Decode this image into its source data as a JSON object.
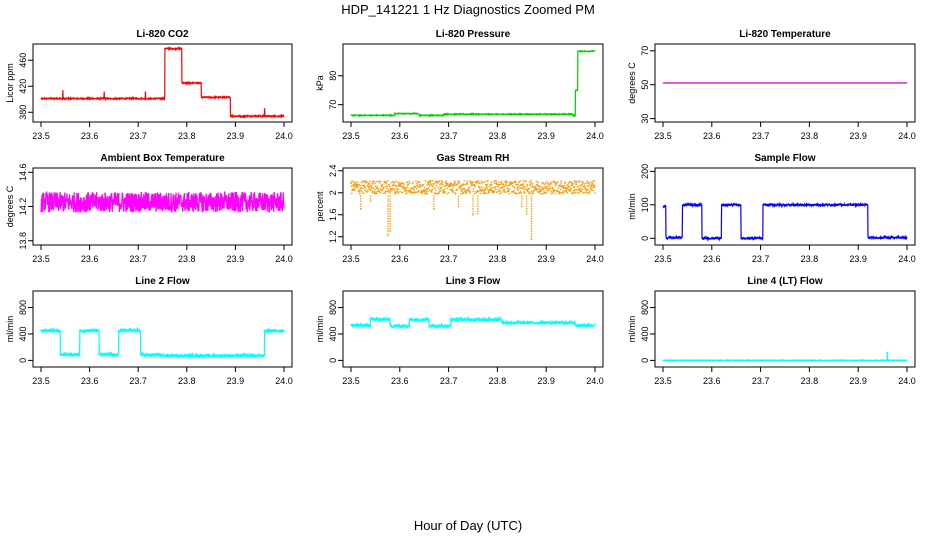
{
  "page": {
    "title": "HDP_141221  1 Hz Diagnostics Zoomed PM",
    "xlabel": "Hour of Day (UTC)"
  },
  "chart_data": [
    {
      "type": "line",
      "title": "Li-820 CO2",
      "ylabel": "Licor ppm",
      "color": "#ff0000",
      "xlim": [
        23.5,
        24.0
      ],
      "ylim": [
        365,
        485
      ],
      "yticks": [
        380,
        420,
        460
      ],
      "xticks": [
        23.5,
        23.6,
        23.7,
        23.8,
        23.9,
        24.0
      ],
      "segments": [
        [
          23.5,
          23.755,
          401
        ],
        [
          23.755,
          23.79,
          478
        ],
        [
          23.79,
          23.83,
          425
        ],
        [
          23.83,
          23.89,
          403
        ],
        [
          23.89,
          24.0,
          374
        ]
      ],
      "spikes": [
        [
          23.545,
          414
        ],
        [
          23.63,
          412
        ],
        [
          23.715,
          412
        ],
        [
          23.96,
          386
        ]
      ],
      "noise": 1
    },
    {
      "type": "line",
      "title": "Li-820 Pressure",
      "ylabel": "kPa",
      "color": "#00cc00",
      "xlim": [
        23.5,
        24.0
      ],
      "ylim": [
        64,
        91
      ],
      "yticks": [
        70,
        80
      ],
      "xticks": [
        23.5,
        23.6,
        23.7,
        23.8,
        23.9,
        24.0
      ],
      "segments": [
        [
          23.5,
          23.59,
          66.3
        ],
        [
          23.59,
          23.64,
          66.9
        ],
        [
          23.64,
          23.69,
          66.3
        ],
        [
          23.69,
          23.955,
          66.7
        ],
        [
          23.955,
          23.96,
          66.3
        ],
        [
          23.96,
          23.965,
          75
        ],
        [
          23.965,
          24.0,
          88.5
        ]
      ],
      "spikes": [],
      "noise": 0.15
    },
    {
      "type": "line",
      "title": "Li-820 Temperature",
      "ylabel": "degrees C",
      "color": "#cc00cc",
      "xlim": [
        23.5,
        24.0
      ],
      "ylim": [
        28,
        74
      ],
      "yticks": [
        30,
        50,
        70
      ],
      "xticks": [
        23.5,
        23.6,
        23.7,
        23.8,
        23.9,
        24.0
      ],
      "segments": [
        [
          23.5,
          24.0,
          51
        ]
      ],
      "spikes": [],
      "noise": 0
    },
    {
      "type": "line",
      "title": "Ambient Box Temperature",
      "ylabel": "degrees C",
      "color": "#ff00ff",
      "xlim": [
        23.5,
        24.0
      ],
      "ylim": [
        13.75,
        14.65
      ],
      "yticks": [
        13.8,
        14.2,
        14.6
      ],
      "xticks": [
        23.5,
        23.6,
        23.7,
        23.8,
        23.9,
        24.0
      ],
      "segments": [
        [
          23.5,
          24.0,
          14.25
        ]
      ],
      "spikes": [],
      "noise": 0.12
    },
    {
      "type": "scatter",
      "title": "Gas Stream RH",
      "ylabel": "percent",
      "color": "#ff9900",
      "xlim": [
        23.5,
        24.0
      ],
      "ylim": [
        1.05,
        2.45
      ],
      "yticks": [
        1.2,
        1.6,
        2.0,
        2.4
      ],
      "xticks": [
        23.5,
        23.6,
        23.7,
        23.8,
        23.9,
        24.0
      ],
      "segments": [
        [
          23.5,
          24.0,
          2.1
        ]
      ],
      "spikes": [
        [
          23.576,
          1.22
        ],
        [
          23.58,
          1.3
        ],
        [
          23.67,
          1.7
        ],
        [
          23.72,
          1.75
        ],
        [
          23.75,
          1.6
        ],
        [
          23.76,
          1.62
        ],
        [
          23.85,
          1.75
        ],
        [
          23.86,
          1.62
        ],
        [
          23.87,
          1.15
        ],
        [
          23.52,
          1.7
        ],
        [
          23.54,
          1.85
        ]
      ],
      "noise": 0.12
    },
    {
      "type": "line",
      "title": "Sample Flow",
      "ylabel": "ml/min",
      "color": "#0000ff",
      "xlim": [
        23.5,
        24.0
      ],
      "ylim": [
        -20,
        210
      ],
      "yticks": [
        0,
        100,
        200
      ],
      "xticks": [
        23.5,
        23.6,
        23.7,
        23.8,
        23.9,
        24.0
      ],
      "segments": [
        [
          23.5,
          23.506,
          95
        ],
        [
          23.506,
          23.54,
          2
        ],
        [
          23.54,
          23.58,
          100
        ],
        [
          23.58,
          23.62,
          0
        ],
        [
          23.62,
          23.66,
          100
        ],
        [
          23.66,
          23.705,
          0
        ],
        [
          23.705,
          23.92,
          100
        ],
        [
          23.92,
          24.0,
          2
        ]
      ],
      "spikes": [],
      "noise": 3
    },
    {
      "type": "line",
      "title": "Line 2 Flow",
      "ylabel": "ml/min",
      "color": "#00ffff",
      "xlim": [
        23.5,
        24.0
      ],
      "ylim": [
        -100,
        1050
      ],
      "yticks": [
        0,
        400,
        800
      ],
      "xticks": [
        23.5,
        23.6,
        23.7,
        23.8,
        23.9,
        24.0
      ],
      "segments": [
        [
          23.5,
          23.54,
          450
        ],
        [
          23.54,
          23.58,
          90
        ],
        [
          23.58,
          23.62,
          450
        ],
        [
          23.62,
          23.66,
          90
        ],
        [
          23.66,
          23.705,
          450
        ],
        [
          23.705,
          23.75,
          80
        ],
        [
          23.75,
          23.96,
          70
        ],
        [
          23.96,
          24.0,
          450
        ]
      ],
      "spikes": [],
      "noise": 25
    },
    {
      "type": "line",
      "title": "Line 3 Flow",
      "ylabel": "ml/min",
      "color": "#00ffff",
      "xlim": [
        23.5,
        24.0
      ],
      "ylim": [
        -100,
        1050
      ],
      "yticks": [
        0,
        400,
        800
      ],
      "xticks": [
        23.5,
        23.6,
        23.7,
        23.8,
        23.9,
        24.0
      ],
      "segments": [
        [
          23.5,
          23.54,
          530
        ],
        [
          23.54,
          23.58,
          620
        ],
        [
          23.58,
          23.62,
          520
        ],
        [
          23.62,
          23.66,
          620
        ],
        [
          23.66,
          23.705,
          520
        ],
        [
          23.705,
          23.81,
          620
        ],
        [
          23.81,
          23.96,
          570
        ],
        [
          23.96,
          24.0,
          530
        ]
      ],
      "spikes": [],
      "noise": 25
    },
    {
      "type": "line",
      "title": "Line 4 (LT) Flow",
      "ylabel": "ml/min",
      "color": "#00ffff",
      "xlim": [
        23.5,
        24.0
      ],
      "ylim": [
        -100,
        1050
      ],
      "yticks": [
        0,
        400,
        800
      ],
      "xticks": [
        23.5,
        23.6,
        23.7,
        23.8,
        23.9,
        24.0
      ],
      "segments": [
        [
          23.5,
          24.0,
          0
        ]
      ],
      "spikes": [
        [
          23.96,
          130
        ]
      ],
      "noise": 5
    }
  ]
}
